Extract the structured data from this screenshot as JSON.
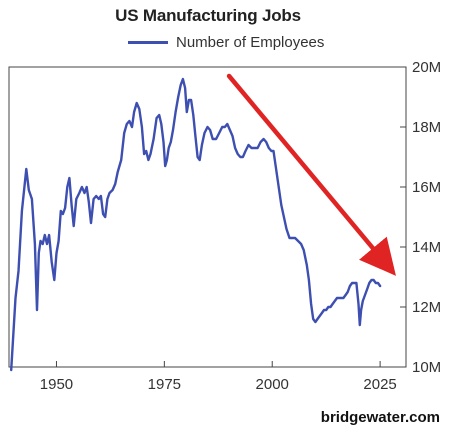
{
  "chart_data": {
    "type": "line",
    "title": "US Manufacturing Jobs",
    "xlabel": "",
    "ylabel": "",
    "xlim": [
      1939,
      2031
    ],
    "ylim": [
      10,
      20
    ],
    "x_ticks": [
      1950,
      1975,
      2000,
      2025
    ],
    "x_tick_labels": [
      "1950",
      "1975",
      "2000",
      "2025"
    ],
    "y_ticks": [
      10,
      12,
      14,
      16,
      18,
      20
    ],
    "y_tick_labels": [
      "10M",
      "12M",
      "14M",
      "16M",
      "18M",
      "20M"
    ],
    "grid": false,
    "legend_position": "top-center",
    "series": [
      {
        "name": "Number of Employees",
        "color": "#3d4fb0",
        "x": [
          1939.5,
          1940.5,
          1941.2,
          1942,
          1943,
          1943.6,
          1944.3,
          1945,
          1945.5,
          1945.9,
          1946.3,
          1946.8,
          1947.3,
          1947.8,
          1948.3,
          1948.9,
          1949.5,
          1950,
          1950.5,
          1951,
          1951.5,
          1952,
          1952.5,
          1953,
          1953.5,
          1954,
          1954.6,
          1955.3,
          1955.9,
          1956.5,
          1957,
          1957.5,
          1958,
          1958.6,
          1959.2,
          1959.8,
          1960.3,
          1960.8,
          1961.3,
          1961.8,
          1962.3,
          1963,
          1963.6,
          1964.2,
          1965,
          1965.7,
          1966.3,
          1966.9,
          1967.5,
          1968,
          1968.6,
          1969.2,
          1969.8,
          1970.3,
          1970.8,
          1971.3,
          1971.8,
          1972.5,
          1973.2,
          1973.8,
          1974.3,
          1974.8,
          1975.2,
          1975.6,
          1976,
          1976.5,
          1977,
          1977.6,
          1978.2,
          1978.8,
          1979.3,
          1979.8,
          1980.2,
          1980.7,
          1981.2,
          1981.7,
          1982.2,
          1982.7,
          1983.2,
          1983.7,
          1984.3,
          1985,
          1985.6,
          1986.2,
          1987,
          1987.7,
          1988.4,
          1989,
          1989.6,
          1990.2,
          1990.8,
          1991.4,
          1992,
          1992.6,
          1993.2,
          1993.8,
          1994.5,
          1995.2,
          1995.9,
          1996.6,
          1997.3,
          1998,
          1998.6,
          1999.2,
          1999.8,
          2000.3,
          2000.9,
          2001.5,
          2002.1,
          2002.7,
          2003.3,
          2004,
          2004.7,
          2005.3,
          2006,
          2006.7,
          2007.3,
          2008,
          2008.5,
          2009,
          2009.5,
          2010,
          2010.5,
          2011,
          2011.5,
          2012,
          2012.5,
          2013,
          2013.5,
          2014,
          2014.5,
          2015,
          2015.5,
          2016,
          2016.5,
          2017,
          2017.5,
          2018,
          2018.5,
          2019,
          2019.5,
          2020,
          2020.3,
          2020.6,
          2021,
          2021.5,
          2022,
          2022.5,
          2023,
          2023.5,
          2024,
          2024.5,
          2025
        ],
        "values": [
          9.9,
          12.3,
          13.2,
          15.2,
          16.6,
          15.9,
          15.6,
          14.1,
          11.9,
          13.8,
          14.2,
          14.1,
          14.4,
          14.1,
          14.4,
          13.5,
          12.9,
          13.8,
          14.2,
          15.2,
          15.1,
          15.3,
          16.0,
          16.3,
          15.4,
          14.7,
          15.6,
          15.8,
          16.0,
          15.8,
          16.0,
          15.5,
          14.8,
          15.6,
          15.7,
          15.6,
          15.7,
          15.1,
          15.0,
          15.6,
          15.8,
          15.9,
          16.1,
          16.5,
          16.9,
          17.8,
          18.1,
          18.2,
          18.0,
          18.5,
          18.8,
          18.6,
          18.0,
          17.1,
          17.2,
          16.9,
          17.1,
          17.6,
          18.3,
          18.4,
          18.1,
          17.5,
          16.7,
          16.9,
          17.3,
          17.5,
          17.9,
          18.5,
          19.0,
          19.4,
          19.6,
          19.3,
          18.5,
          18.9,
          18.9,
          18.4,
          17.7,
          17.0,
          16.9,
          17.4,
          17.8,
          18.0,
          17.9,
          17.6,
          17.6,
          17.8,
          18.0,
          18.0,
          18.1,
          17.9,
          17.7,
          17.3,
          17.1,
          17.0,
          17.0,
          17.2,
          17.4,
          17.3,
          17.3,
          17.3,
          17.5,
          17.6,
          17.5,
          17.3,
          17.2,
          17.2,
          16.6,
          16.0,
          15.4,
          15.0,
          14.6,
          14.3,
          14.3,
          14.3,
          14.2,
          14.1,
          13.9,
          13.4,
          12.9,
          12.1,
          11.6,
          11.5,
          11.6,
          11.7,
          11.8,
          11.9,
          11.9,
          12.0,
          12.0,
          12.1,
          12.2,
          12.3,
          12.3,
          12.3,
          12.3,
          12.4,
          12.5,
          12.7,
          12.8,
          12.8,
          12.8,
          12.1,
          11.4,
          11.9,
          12.2,
          12.4,
          12.6,
          12.8,
          12.9,
          12.9,
          12.8,
          12.8,
          12.7
        ]
      }
    ],
    "annotation": {
      "type": "arrow",
      "color": "#e02424",
      "from": [
        1990,
        19.7
      ],
      "to": [
        2026,
        13.5
      ]
    }
  },
  "watermark": "bridgewater.com"
}
